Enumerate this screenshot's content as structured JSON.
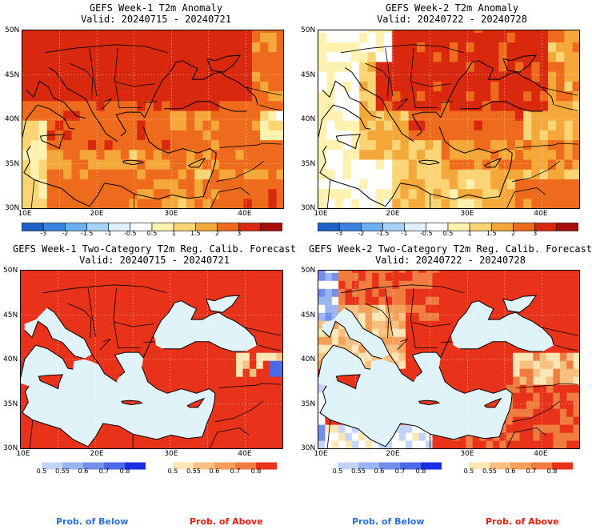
{
  "panels": [
    {
      "title": "GEFS Week-1 T2m Anomaly",
      "valid": "Valid: 20240715 - 20240721"
    },
    {
      "title": "GEFS Week-2 T2m Anomaly",
      "valid": "Valid: 20240722 - 20240728"
    },
    {
      "title": "GEFS Week-1 Two-Category T2m Reg. Calib. Forecast",
      "valid": "Valid: 20240715 - 20240721"
    },
    {
      "title": "GEFS Week-2 Two-Category T2m Reg. Calib. Forecast",
      "valid": "Valid: 20240722 - 20240728"
    }
  ],
  "axes": {
    "lat_labels": [
      "50N",
      "45N",
      "40N",
      "35N",
      "30N"
    ],
    "lon_labels": [
      "10E",
      "20E",
      "30E",
      "40E"
    ]
  },
  "anomaly_colorbar": {
    "labels": [
      "-3",
      "-2",
      "-1.5",
      "-1",
      "-0.5",
      "0.5",
      "1",
      "1.5",
      "2",
      "3"
    ],
    "colors": [
      "#1c62c8",
      "#3a84e0",
      "#6aaef0",
      "#a6d2f8",
      "#dff0fc",
      "#ffffff",
      "#fff2b0",
      "#fbd575",
      "#f5a83a",
      "#ee6a1c",
      "#d8280e",
      "#a50e0a"
    ]
  },
  "prob_colorbars": {
    "below": {
      "labels": [
        "0.5",
        "0.55",
        "0.6",
        "0.7",
        "0.8"
      ],
      "colors": [
        "#c4d4f8",
        "#9ab6f2",
        "#7290ea",
        "#4a6ae6",
        "#1a2ee6"
      ]
    },
    "above": {
      "labels": [
        "0.5",
        "0.55",
        "0.6",
        "0.7",
        "0.8"
      ],
      "colors": [
        "#fde6b4",
        "#f8c080",
        "#f5a05a",
        "#f07c40",
        "#e8321a"
      ]
    }
  },
  "footer": {
    "left_below": "Prob. of Below",
    "left_above": "Prob. of Above",
    "right_below": "Prob. of Below",
    "right_above": "Prob. of Above"
  },
  "chart_data": [
    {
      "type": "heatmap",
      "title": "GEFS Week-1 T2m Anomaly",
      "subtitle": "Valid: 20240715 - 20240721",
      "x_range": [
        10,
        45
      ],
      "y_range": [
        30,
        50
      ],
      "units": "anomaly levels -3 to 3",
      "dominant": "Strong positive anomalies (2-3+) over the Balkans, Italy, Turkey and the Black Sea; 1-2 over the Mediterranean and North Africa."
    },
    {
      "type": "heatmap",
      "title": "GEFS Week-2 T2m Anomaly",
      "subtitle": "Valid: 20240722 - 20240728",
      "x_range": [
        10,
        45
      ],
      "y_range": [
        30,
        50
      ],
      "units": "anomaly levels -3 to 3",
      "dominant": "Strongest anomalies (3+) over the Balkans and the Black Sea region; weak anomalies near the western edge and over Libya."
    },
    {
      "type": "heatmap",
      "title": "GEFS Week-1 Two-Category T2m Reg. Calib. Forecast",
      "subtitle": "Valid: 20240715 - 20240721",
      "x_range": [
        10,
        45
      ],
      "y_range": [
        30,
        50
      ],
      "dominant": "Prob. of Above 0.8 over nearly all land; seas masked."
    },
    {
      "type": "heatmap",
      "title": "GEFS Week-2 Two-Category T2m Reg. Calib. Forecast",
      "subtitle": "Valid: 20240722 - 20240728",
      "x_range": [
        10,
        45
      ],
      "y_range": [
        30,
        50
      ],
      "dominant": "Prob. of Above 0.7-0.8 over the Balkans, Turkey and the Middle East; weak below-normal probabilities over the NW Alps and parts of Tunisia."
    }
  ]
}
